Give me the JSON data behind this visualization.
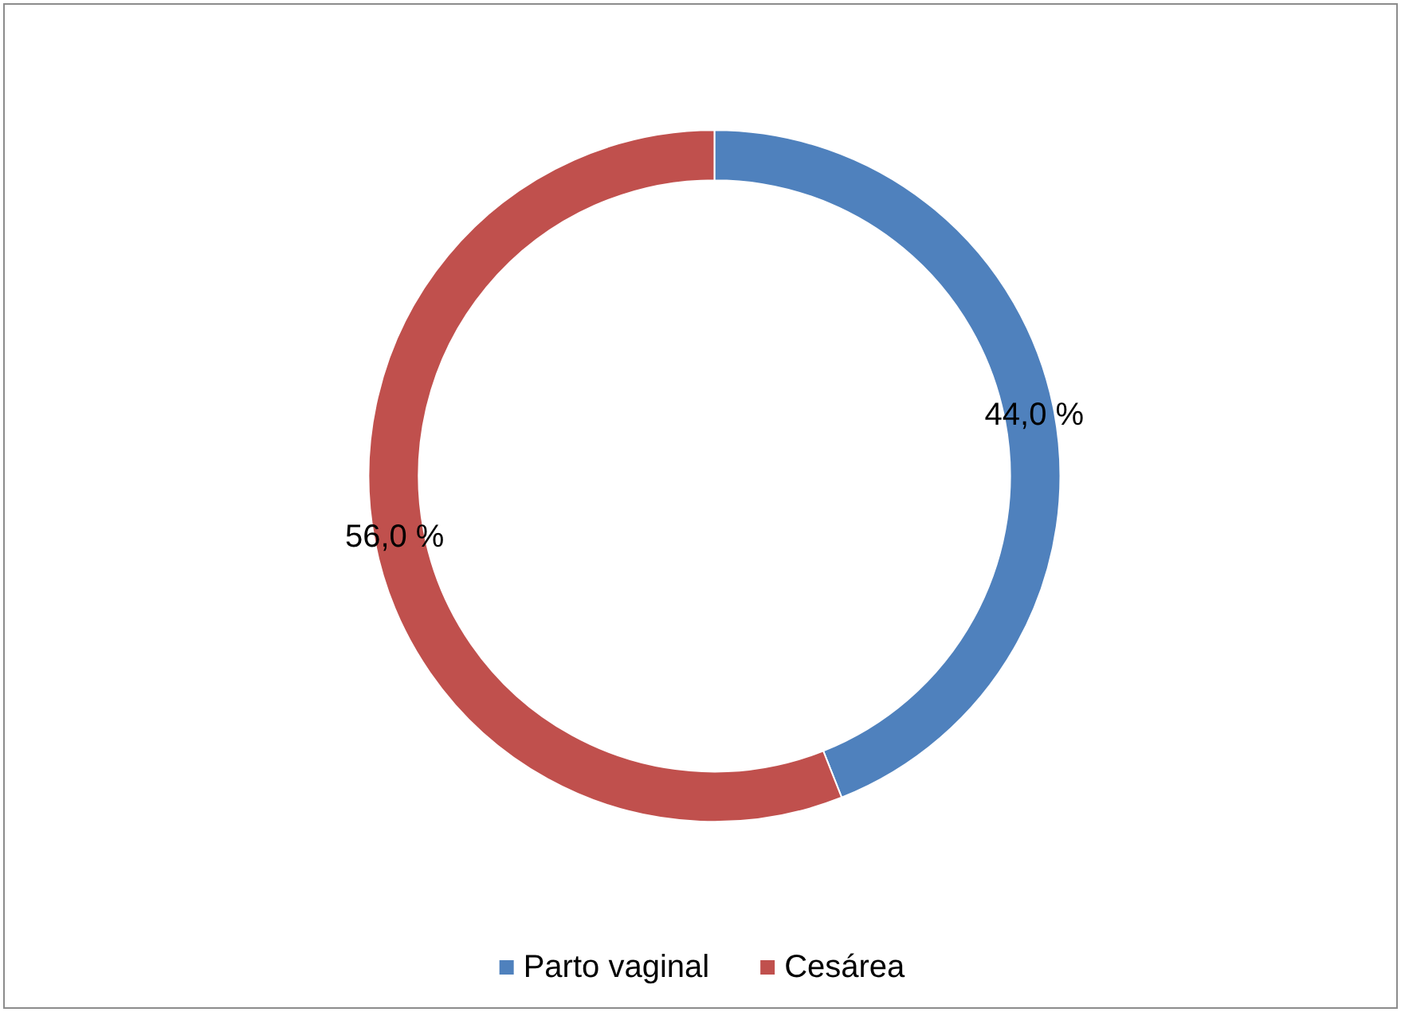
{
  "chart_data": {
    "type": "donut",
    "categories": [
      "Parto vaginal",
      "Cesárea"
    ],
    "values": [
      44.0,
      56.0
    ],
    "colors": [
      "#4f81bd",
      "#c0504d"
    ],
    "value_labels": [
      "44,0 %",
      "56,0 %"
    ],
    "legend": "bottom"
  }
}
